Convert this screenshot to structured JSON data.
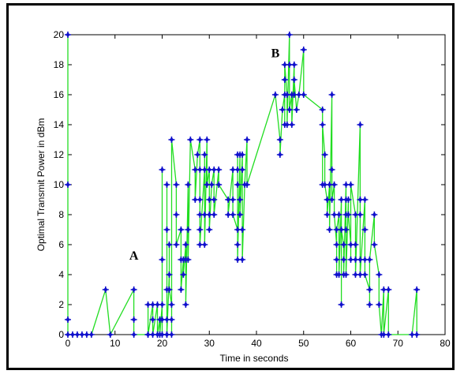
{
  "chart_data": {
    "type": "line",
    "xlabel": "Time in seconds",
    "ylabel": "Optimal Transmit Power in dBm",
    "xlim": [
      0,
      80
    ],
    "ylim": [
      0,
      20
    ],
    "xticks": [
      0,
      10,
      20,
      30,
      40,
      50,
      60,
      70,
      80
    ],
    "yticks": [
      0,
      2,
      4,
      6,
      8,
      10,
      12,
      14,
      16,
      18,
      20
    ],
    "grid": false,
    "line_color": "#22dd22",
    "marker_color": "#1010cc",
    "annotations": [
      {
        "text": "A",
        "x": 14,
        "y": 5
      },
      {
        "text": "B",
        "x": 44,
        "y": 18.5
      }
    ],
    "series": [
      {
        "points": [
          [
            0,
            10
          ],
          [
            0,
            20
          ],
          [
            0,
            1
          ],
          [
            0,
            0
          ],
          [
            1,
            0
          ],
          [
            2,
            0
          ],
          [
            3,
            0
          ],
          [
            4,
            0
          ],
          [
            5,
            0
          ],
          [
            8,
            3
          ],
          [
            9,
            0
          ],
          [
            14,
            3
          ],
          [
            14,
            1
          ],
          [
            14,
            0
          ],
          [
            17,
            0
          ],
          [
            17,
            2
          ],
          [
            17,
            0
          ],
          [
            18,
            2
          ],
          [
            18,
            1
          ],
          [
            18,
            0
          ],
          [
            19,
            2
          ],
          [
            19,
            0
          ],
          [
            19.5,
            1
          ],
          [
            19.5,
            0
          ],
          [
            20,
            2
          ],
          [
            20,
            5
          ],
          [
            20,
            11
          ],
          [
            20,
            1
          ],
          [
            20,
            0
          ],
          [
            21,
            0
          ],
          [
            21,
            3
          ],
          [
            21,
            7
          ],
          [
            21,
            10
          ],
          [
            21,
            1
          ],
          [
            21,
            0
          ],
          [
            21.5,
            4
          ],
          [
            21.5,
            6
          ],
          [
            21.5,
            3
          ],
          [
            22,
            2
          ],
          [
            22,
            1
          ],
          [
            22,
            0
          ],
          [
            22,
            13
          ],
          [
            23,
            10
          ],
          [
            23,
            8
          ],
          [
            23,
            6
          ],
          [
            24,
            7
          ],
          [
            24,
            5
          ],
          [
            24,
            3
          ],
          [
            24.5,
            5
          ],
          [
            24.5,
            4
          ],
          [
            25,
            6
          ],
          [
            25,
            5
          ],
          [
            25,
            2
          ],
          [
            25.5,
            10
          ],
          [
            25.5,
            7
          ],
          [
            25.5,
            5
          ],
          [
            26,
            13
          ],
          [
            27,
            11
          ],
          [
            27,
            9
          ],
          [
            27.5,
            12
          ],
          [
            28,
            13
          ],
          [
            28,
            11
          ],
          [
            28,
            9
          ],
          [
            28,
            8
          ],
          [
            28,
            7
          ],
          [
            28,
            6
          ],
          [
            29,
            11
          ],
          [
            29,
            12
          ],
          [
            29,
            8
          ],
          [
            29,
            6
          ],
          [
            29.5,
            13
          ],
          [
            29.5,
            10
          ],
          [
            30,
            11
          ],
          [
            30,
            9
          ],
          [
            30,
            8
          ],
          [
            30,
            7
          ],
          [
            30.5,
            10
          ],
          [
            31,
            11
          ],
          [
            31,
            9
          ],
          [
            31,
            8
          ],
          [
            32,
            11
          ],
          [
            32,
            10
          ],
          [
            34,
            9
          ],
          [
            34,
            8
          ],
          [
            35,
            11
          ],
          [
            35,
            9
          ],
          [
            35,
            8
          ],
          [
            36,
            7
          ],
          [
            36,
            6
          ],
          [
            36,
            11
          ],
          [
            36,
            10
          ],
          [
            36,
            12
          ],
          [
            36,
            5
          ],
          [
            36.5,
            12
          ],
          [
            36.5,
            9
          ],
          [
            36.5,
            8
          ],
          [
            37,
            12
          ],
          [
            37,
            11
          ],
          [
            37,
            7
          ],
          [
            37,
            5
          ],
          [
            37.5,
            10
          ],
          [
            38,
            13
          ],
          [
            38,
            10
          ],
          [
            44,
            16
          ],
          [
            45,
            13
          ],
          [
            45,
            12
          ],
          [
            45.5,
            15
          ],
          [
            46,
            16
          ],
          [
            46,
            14
          ],
          [
            46,
            17
          ],
          [
            46,
            18
          ],
          [
            46.5,
            16
          ],
          [
            46.5,
            14
          ],
          [
            47,
            20
          ],
          [
            47,
            18
          ],
          [
            47,
            15
          ],
          [
            47.5,
            16
          ],
          [
            47.5,
            14
          ],
          [
            48,
            18
          ],
          [
            48,
            16
          ],
          [
            48,
            17
          ],
          [
            48.5,
            15
          ],
          [
            49,
            16
          ],
          [
            50,
            19
          ],
          [
            50,
            16
          ],
          [
            54,
            15
          ],
          [
            54,
            10
          ],
          [
            54,
            14
          ],
          [
            54.5,
            12
          ],
          [
            54.5,
            10
          ],
          [
            55,
            9
          ],
          [
            55,
            8
          ],
          [
            55.5,
            10
          ],
          [
            55.5,
            7
          ],
          [
            56,
            16
          ],
          [
            56,
            11
          ],
          [
            56,
            9
          ],
          [
            56.5,
            10
          ],
          [
            56.5,
            8
          ],
          [
            57,
            6
          ],
          [
            57,
            5
          ],
          [
            57,
            4
          ],
          [
            57,
            7
          ],
          [
            57.5,
            8
          ],
          [
            57.5,
            4
          ],
          [
            58,
            9
          ],
          [
            58,
            2
          ],
          [
            58,
            7
          ],
          [
            58.5,
            6
          ],
          [
            58.5,
            5
          ],
          [
            58.5,
            4
          ],
          [
            59,
            10
          ],
          [
            59,
            9
          ],
          [
            59,
            8
          ],
          [
            59,
            7
          ],
          [
            59,
            4
          ],
          [
            59.5,
            9
          ],
          [
            59.5,
            8
          ],
          [
            60,
            6
          ],
          [
            60,
            5
          ],
          [
            60,
            10
          ],
          [
            61,
            8
          ],
          [
            61,
            6
          ],
          [
            61,
            5
          ],
          [
            61,
            4
          ],
          [
            62,
            14
          ],
          [
            62,
            9
          ],
          [
            62,
            8
          ],
          [
            62,
            5
          ],
          [
            62,
            4
          ],
          [
            63,
            9
          ],
          [
            63,
            7
          ],
          [
            63,
            5
          ],
          [
            63,
            4
          ],
          [
            64,
            3
          ],
          [
            64,
            2
          ],
          [
            64,
            5
          ],
          [
            65,
            8
          ],
          [
            65,
            6
          ],
          [
            66,
            4
          ],
          [
            66,
            2
          ],
          [
            66.5,
            0
          ],
          [
            67,
            3
          ],
          [
            67,
            0
          ],
          [
            68,
            3
          ],
          [
            68,
            0
          ],
          [
            73,
            0
          ],
          [
            74,
            3
          ],
          [
            74,
            0
          ]
        ]
      }
    ]
  }
}
